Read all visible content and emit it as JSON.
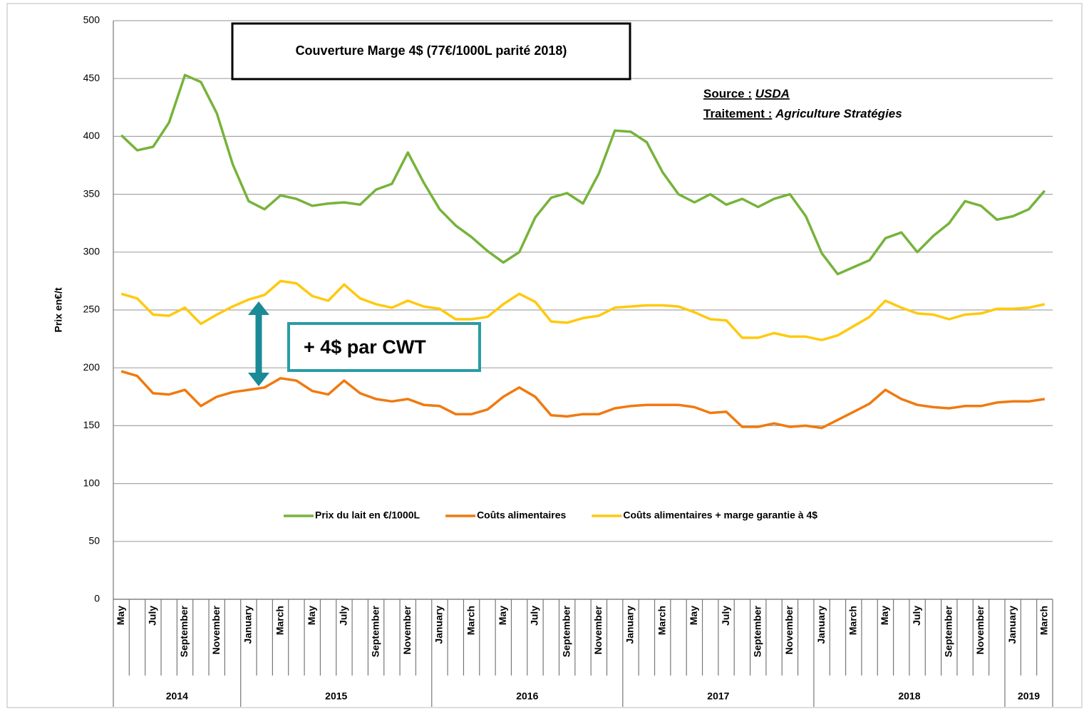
{
  "chart_data": {
    "type": "line",
    "title": "Couverture Marge 4$ (77€/1000L parité 2018)",
    "y_label": "Prix en€/t",
    "source_label": "Source :",
    "source": "USDA",
    "treatment_label": "Traitement :",
    "treatment": "Agriculture Stratégies",
    "annotation": "+ 4$ par CWT",
    "categories": [
      "May",
      null,
      "July",
      null,
      "September",
      null,
      "November",
      null,
      "January",
      null,
      "March",
      null,
      "May",
      null,
      "July",
      null,
      "September",
      null,
      "November",
      null,
      "January",
      null,
      "March",
      null,
      "May",
      null,
      "July",
      null,
      "September",
      null,
      "November",
      null,
      "January",
      null,
      "March",
      null,
      "May",
      null,
      "July",
      null,
      "September",
      null,
      "November",
      null,
      "January",
      null,
      "March",
      null,
      "May",
      null,
      "July",
      null,
      "September",
      null,
      "November",
      null,
      "January",
      null,
      "March"
    ],
    "years": [
      "2014",
      "2015",
      "2016",
      "2017",
      "2018",
      "2019"
    ],
    "ylim": [
      0,
      500
    ],
    "yticks": [
      0,
      50,
      100,
      150,
      200,
      250,
      300,
      350,
      400,
      450,
      500
    ],
    "grid": true,
    "legend": "bottom",
    "series": [
      {
        "name": "Prix du lait en €/1000L",
        "color": "#77b33b",
        "values": [
          401,
          388,
          391,
          412,
          453,
          447,
          420,
          376,
          344,
          337,
          349,
          346,
          340,
          342,
          343,
          341,
          354,
          359,
          386,
          360,
          337,
          323,
          313,
          301,
          291,
          300,
          330,
          347,
          351,
          342,
          368,
          405,
          404,
          395,
          369,
          350,
          343,
          350,
          341,
          346,
          339,
          346,
          350,
          331,
          299,
          281,
          287,
          293,
          312,
          317,
          300,
          314,
          325,
          344,
          340,
          328,
          331,
          337,
          353
        ]
      },
      {
        "name": "Coûts alimentaires",
        "color": "#f07a10",
        "values": [
          197,
          193,
          178,
          177,
          181,
          167,
          175,
          179,
          181,
          183,
          191,
          189,
          180,
          177,
          189,
          178,
          173,
          171,
          173,
          168,
          167,
          160,
          160,
          164,
          175,
          183,
          175,
          159,
          158,
          160,
          160,
          165,
          167,
          168,
          168,
          168,
          166,
          161,
          162,
          149,
          149,
          152,
          149,
          150,
          148,
          155,
          162,
          169,
          181,
          173,
          168,
          166,
          165,
          167,
          167,
          170,
          171,
          171,
          173
        ]
      },
      {
        "name": "Coûts alimentaires + marge garantie à 4$",
        "color": "#ffc90e",
        "values": [
          264,
          260,
          246,
          245,
          252,
          238,
          246,
          253,
          259,
          263,
          275,
          273,
          262,
          258,
          272,
          260,
          255,
          252,
          258,
          253,
          251,
          242,
          242,
          244,
          255,
          264,
          257,
          240,
          239,
          243,
          245,
          252,
          253,
          254,
          254,
          253,
          248,
          242,
          241,
          226,
          226,
          230,
          227,
          227,
          224,
          228,
          236,
          244,
          258,
          252,
          247,
          246,
          242,
          246,
          247,
          251,
          251,
          252,
          255
        ]
      }
    ]
  }
}
